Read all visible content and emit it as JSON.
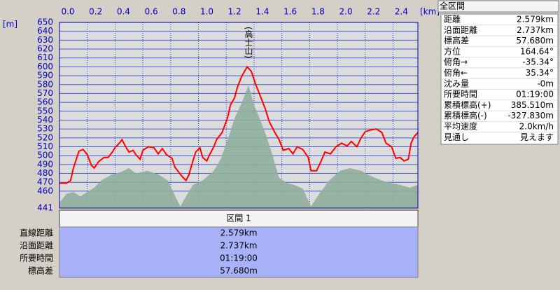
{
  "chart_data": {
    "type": "line",
    "x_label": "[km]",
    "y_label": "[m]",
    "annotation": "(高士山)",
    "xlim": [
      0,
      2.579
    ],
    "xticks": [
      {
        "value": 0,
        "label": "0.0"
      },
      0.2,
      0.4,
      0.6,
      0.8,
      {
        "value": 1,
        "label": "1.0"
      },
      1.2,
      1.4,
      1.6,
      1.8,
      {
        "value": 2,
        "label": "2.0"
      },
      2.2,
      2.4
    ],
    "ylim": [
      441,
      650
    ],
    "yticks": [
      441,
      460,
      470,
      480,
      490,
      500,
      510,
      520,
      530,
      540,
      550,
      560,
      570,
      580,
      590,
      600,
      610,
      620,
      630,
      640,
      650
    ],
    "grid": true,
    "series": [
      {
        "type": "area",
        "color": "#8fae9c",
        "x": [
          0,
          0.05,
          0.1,
          0.15,
          0.2,
          0.25,
          0.3,
          0.38,
          0.45,
          0.5,
          0.55,
          0.63,
          0.71,
          0.78,
          0.83,
          0.87,
          0.91,
          0.96,
          1.03,
          1.11,
          1.16,
          1.21,
          1.26,
          1.31,
          1.36,
          1.4,
          1.44,
          1.48,
          1.53,
          1.58,
          1.64,
          1.69,
          1.75,
          1.81,
          1.86,
          1.94,
          2.02,
          2.09,
          2.17,
          2.24,
          2.32,
          2.39,
          2.45,
          2.52,
          2.579
        ],
        "values": [
          447,
          457,
          459,
          454,
          459,
          464,
          472,
          479,
          482,
          486,
          480,
          483,
          479,
          472,
          455,
          443,
          454,
          467,
          472,
          483,
          496,
          518,
          542,
          559,
          579,
          557,
          542,
          526,
          502,
          475,
          469,
          467,
          463,
          443,
          455,
          472,
          483,
          486,
          483,
          477,
          472,
          469,
          467,
          464,
          467
        ]
      },
      {
        "type": "line",
        "color": "#ff0000",
        "x": [
          0,
          0.05,
          0.08,
          0.1,
          0.14,
          0.17,
          0.2,
          0.23,
          0.25,
          0.28,
          0.32,
          0.35,
          0.38,
          0.4,
          0.43,
          0.45,
          0.48,
          0.5,
          0.53,
          0.55,
          0.58,
          0.6,
          0.64,
          0.68,
          0.71,
          0.74,
          0.77,
          0.81,
          0.83,
          0.86,
          0.88,
          0.91,
          0.93,
          0.96,
          0.98,
          1.01,
          1.03,
          1.06,
          1.08,
          1.11,
          1.13,
          1.17,
          1.21,
          1.23,
          1.26,
          1.28,
          1.31,
          1.35,
          1.38,
          1.41,
          1.45,
          1.48,
          1.51,
          1.55,
          1.58,
          1.61,
          1.65,
          1.68,
          1.71,
          1.75,
          1.79,
          1.81,
          1.85,
          1.88,
          1.91,
          1.95,
          1.99,
          2.03,
          2.07,
          2.1,
          2.14,
          2.17,
          2.2,
          2.24,
          2.28,
          2.32,
          2.35,
          2.39,
          2.42,
          2.45,
          2.48,
          2.51,
          2.53,
          2.55,
          2.579
        ],
        "values": [
          469,
          469,
          472,
          486,
          505,
          507,
          501,
          489,
          486,
          493,
          498,
          498,
          504,
          509,
          514,
          518,
          509,
          504,
          506,
          501,
          496,
          506,
          510,
          509,
          502,
          508,
          501,
          497,
          487,
          481,
          477,
          472,
          478,
          494,
          504,
          509,
          498,
          494,
          501,
          510,
          518,
          526,
          543,
          557,
          565,
          577,
          589,
          600,
          595,
          581,
          565,
          553,
          538,
          526,
          518,
          506,
          508,
          502,
          510,
          507,
          498,
          483,
          483,
          493,
          504,
          502,
          510,
          514,
          511,
          516,
          510,
          520,
          527,
          529,
          530,
          526,
          514,
          510,
          497,
          498,
          494,
          496,
          514,
          521,
          526
        ]
      }
    ]
  },
  "total_panel": {
    "title": "全区間",
    "rows": [
      [
        "距離",
        "2.579km"
      ],
      [
        "沿面距離",
        "2.737km"
      ],
      [
        "標高差",
        "57.680m"
      ],
      [
        "方位",
        "164.64°"
      ],
      [
        "俯角→",
        "-35.34°"
      ],
      [
        "俯角←",
        "35.34°"
      ],
      [
        "沈み量",
        "-0m"
      ],
      [
        "所要時間",
        "01:19:00"
      ],
      [
        "累積標高(+)",
        "385.510m"
      ],
      [
        "累積標高(-)",
        "-327.830m"
      ],
      [
        "平均速度",
        "2.0km/h"
      ],
      [
        "見通し",
        "見えます"
      ]
    ]
  },
  "section_panel": {
    "title": "区間 1",
    "rows": [
      [
        "直線距離",
        "2.579km"
      ],
      [
        "沿面距離",
        "2.737km"
      ],
      [
        "所要時間",
        "01:19:00"
      ],
      [
        "標高差",
        "57.680m"
      ]
    ]
  }
}
